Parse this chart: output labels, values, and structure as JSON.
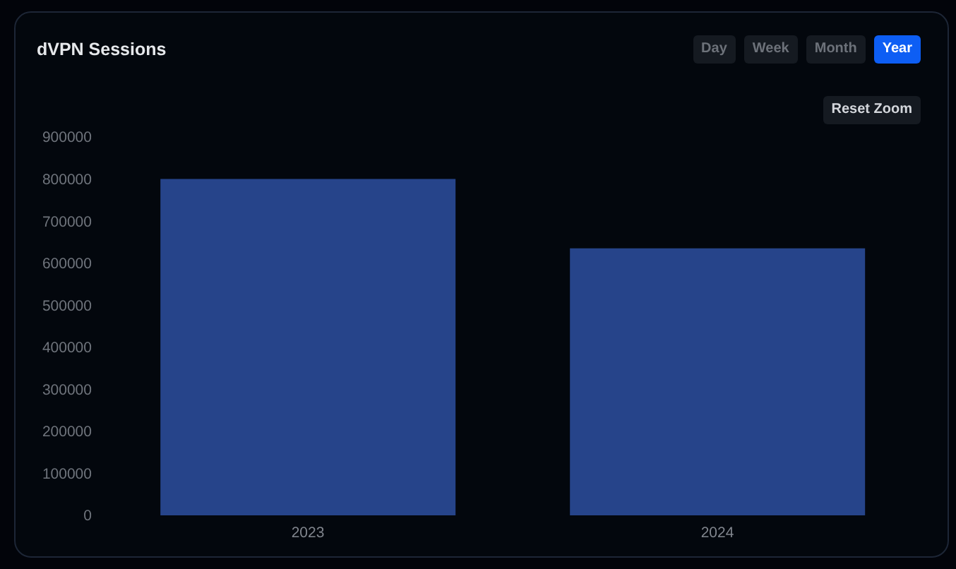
{
  "chart_data": {
    "type": "bar",
    "title": "dVPN Sessions",
    "categories": [
      "2023",
      "2024"
    ],
    "values": [
      800000,
      635000
    ],
    "color": "#26448a",
    "ylim": [
      0,
      900000
    ],
    "yticks": [
      0,
      100000,
      200000,
      300000,
      400000,
      500000,
      600000,
      700000,
      800000,
      900000
    ],
    "annotations": [
      "Day",
      "Week",
      "Month",
      "Year",
      "Reset Zoom"
    ]
  }
}
